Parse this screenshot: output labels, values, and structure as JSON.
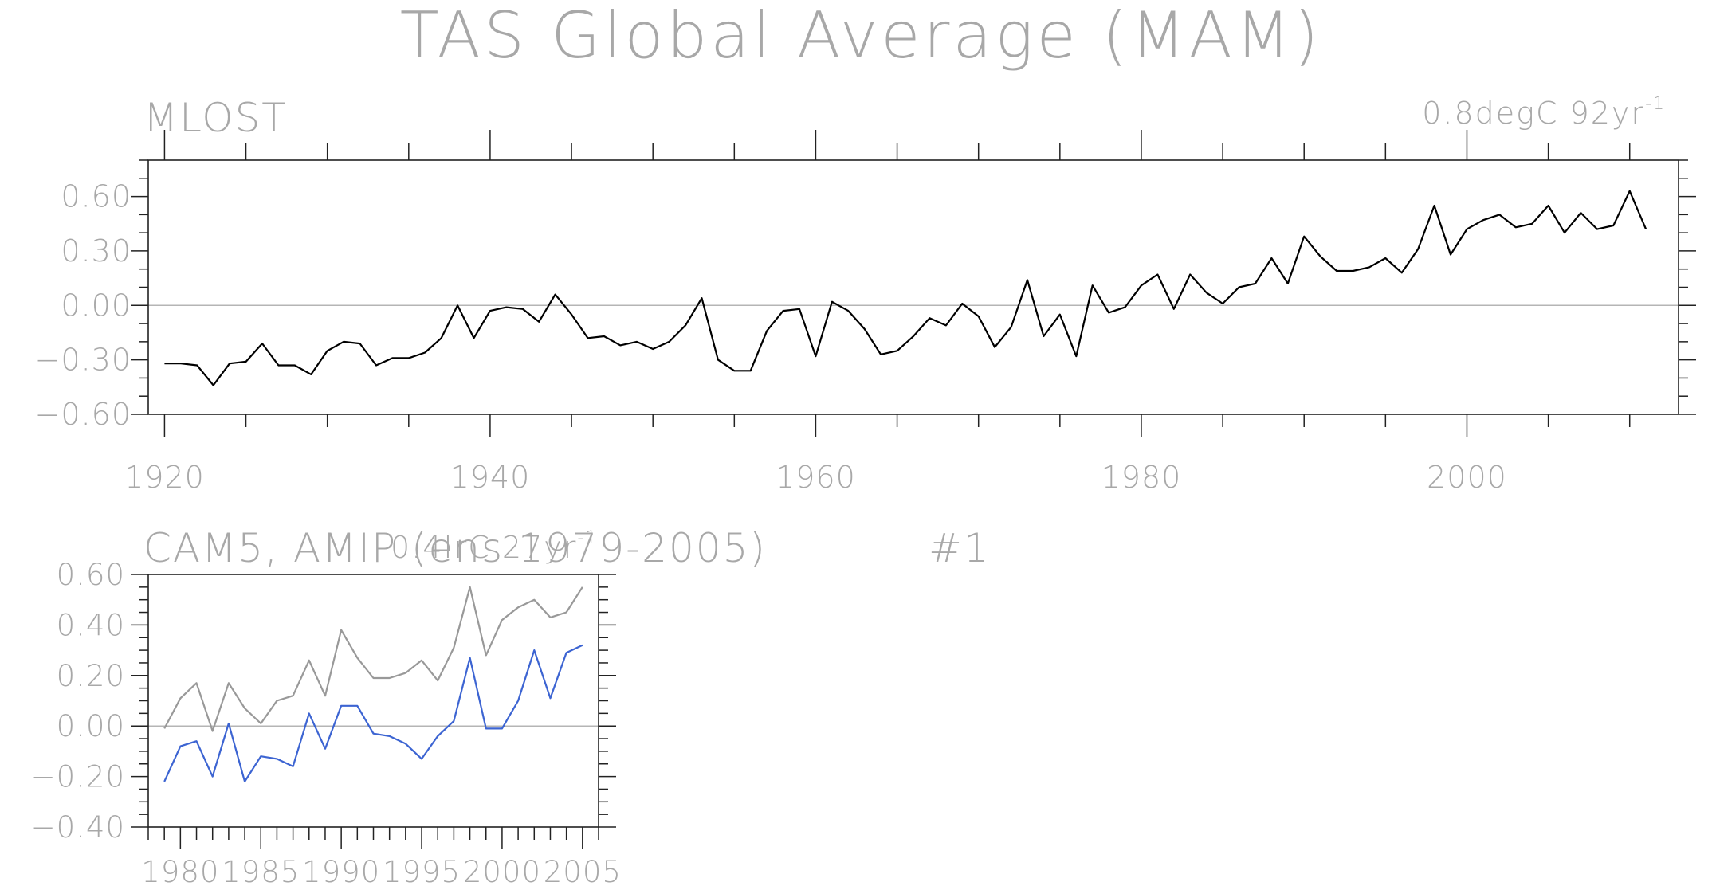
{
  "title": "TAS Global Average (MAM)",
  "chart_data": [
    {
      "type": "line",
      "panel_label": "MLOST",
      "trend_label": "0.8degC 92yr",
      "trend_label_superscript": "-1",
      "x": [
        1920,
        1921,
        1922,
        1923,
        1924,
        1925,
        1926,
        1927,
        1928,
        1929,
        1930,
        1931,
        1932,
        1933,
        1934,
        1935,
        1936,
        1937,
        1938,
        1939,
        1940,
        1941,
        1942,
        1943,
        1944,
        1945,
        1946,
        1947,
        1948,
        1949,
        1950,
        1951,
        1952,
        1953,
        1954,
        1955,
        1956,
        1957,
        1958,
        1959,
        1960,
        1961,
        1962,
        1963,
        1964,
        1965,
        1966,
        1967,
        1968,
        1969,
        1970,
        1971,
        1972,
        1973,
        1974,
        1975,
        1976,
        1977,
        1978,
        1979,
        1980,
        1981,
        1982,
        1983,
        1984,
        1985,
        1986,
        1987,
        1988,
        1989,
        1990,
        1991,
        1992,
        1993,
        1994,
        1995,
        1996,
        1997,
        1998,
        1999,
        2000,
        2001,
        2002,
        2003,
        2004,
        2005,
        2006,
        2007,
        2008,
        2009,
        2010,
        2011
      ],
      "series": [
        {
          "color": "#000000",
          "values": [
            -0.32,
            -0.32,
            -0.33,
            -0.44,
            -0.32,
            -0.31,
            -0.21,
            -0.33,
            -0.33,
            -0.38,
            -0.25,
            -0.2,
            -0.21,
            -0.33,
            -0.29,
            -0.29,
            -0.26,
            -0.18,
            0.0,
            -0.18,
            -0.03,
            -0.01,
            -0.02,
            -0.09,
            0.06,
            -0.05,
            -0.18,
            -0.17,
            -0.22,
            -0.2,
            -0.24,
            -0.2,
            -0.11,
            0.04,
            -0.3,
            -0.36,
            -0.36,
            -0.14,
            -0.03,
            -0.02,
            -0.28,
            0.02,
            -0.03,
            -0.13,
            -0.27,
            -0.25,
            -0.17,
            -0.07,
            -0.11,
            0.01,
            -0.06,
            -0.23,
            -0.12,
            0.14,
            -0.17,
            -0.05,
            -0.28,
            0.11,
            -0.04,
            -0.01,
            0.11,
            0.17,
            -0.02,
            0.17,
            0.07,
            0.01,
            0.1,
            0.12,
            0.26,
            0.12,
            0.38,
            0.27,
            0.19,
            0.19,
            0.21,
            0.26,
            0.18,
            0.31,
            0.55,
            0.28,
            0.42,
            0.47,
            0.5,
            0.43,
            0.45,
            0.55,
            0.4,
            0.51,
            0.42,
            0.44,
            0.63,
            0.42
          ]
        }
      ],
      "ylim": [
        -0.6,
        0.8
      ],
      "xlim": [
        1919,
        2013
      ],
      "yticks": [
        "0.60",
        "0.30",
        "0.00",
        "−0.30",
        "−0.60"
      ],
      "ytick_values": [
        0.6,
        0.3,
        0.0,
        -0.3,
        -0.6
      ],
      "xticks": [
        "1920",
        "1940",
        "1960",
        "1980",
        "2000"
      ],
      "xtick_values": [
        1920,
        1940,
        1960,
        1980,
        2000
      ],
      "zero_line": true
    },
    {
      "type": "line",
      "panel_label": "CAM5, AMIP (ens 1979-2005)",
      "panel_label_number": "#1",
      "trend_label": "0.4IrC 27yr",
      "trend_label_superscript": "-1",
      "x": [
        1979,
        1980,
        1981,
        1982,
        1983,
        1984,
        1985,
        1986,
        1987,
        1988,
        1989,
        1990,
        1991,
        1992,
        1993,
        1994,
        1995,
        1996,
        1997,
        1998,
        1999,
        2000,
        2001,
        2002,
        2003,
        2004,
        2005
      ],
      "series": [
        {
          "color": "#999999",
          "values": [
            -0.01,
            0.11,
            0.17,
            -0.02,
            0.17,
            0.07,
            0.01,
            0.1,
            0.12,
            0.26,
            0.12,
            0.38,
            0.27,
            0.19,
            0.19,
            0.21,
            0.26,
            0.18,
            0.31,
            0.55,
            0.28,
            0.42,
            0.47,
            0.5,
            0.43,
            0.45,
            0.55
          ]
        },
        {
          "color": "#3c64d2",
          "values": [
            -0.22,
            -0.08,
            -0.06,
            -0.2,
            0.01,
            -0.22,
            -0.12,
            -0.13,
            -0.16,
            0.05,
            -0.09,
            0.08,
            0.08,
            -0.03,
            -0.04,
            -0.07,
            -0.13,
            -0.04,
            0.02,
            0.27,
            -0.01,
            -0.01,
            0.1,
            0.3,
            0.11,
            0.29,
            0.32
          ]
        }
      ],
      "ylim": [
        -0.4,
        0.6
      ],
      "xlim": [
        1978,
        2006
      ],
      "yticks": [
        "0.60",
        "0.40",
        "0.20",
        "0.00",
        "−0.20",
        "−0.40"
      ],
      "ytick_values": [
        0.6,
        0.4,
        0.2,
        0.0,
        -0.2,
        -0.4
      ],
      "xticks": [
        "1980",
        "1985",
        "1990",
        "1995",
        "2000",
        "2005"
      ],
      "xtick_values": [
        1980,
        1985,
        1990,
        1995,
        2000,
        2005
      ],
      "zero_line": true
    }
  ]
}
